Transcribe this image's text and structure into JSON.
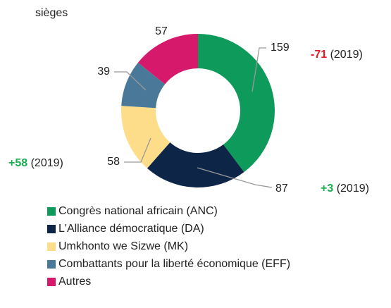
{
  "chart_data": {
    "type": "donut",
    "title": "sièges",
    "series": [
      {
        "name": "Congrès national africain (ANC)",
        "color": "#0e9a5a",
        "value": 159,
        "annotation": {
          "change": "-71",
          "change_color": "#e31b23",
          "year": "(2019)"
        }
      },
      {
        "name": "L'Alliance démocratique (DA)",
        "color": "#0d2547",
        "value": 87,
        "annotation": {
          "change": "+3",
          "change_color": "#1aae4f",
          "year": "(2019)"
        }
      },
      {
        "name": "Umkhonto we Sizwe (MK)",
        "color": "#fedd8a",
        "value": 58,
        "annotation": {
          "change": "+58",
          "change_color": "#1aae4f",
          "year": "(2019)"
        }
      },
      {
        "name": "Combattants pour la liberté économique (EFF)",
        "color": "#4a7898",
        "value": 39
      },
      {
        "name": "Autres",
        "color": "#d6196a",
        "value": 57
      }
    ]
  }
}
